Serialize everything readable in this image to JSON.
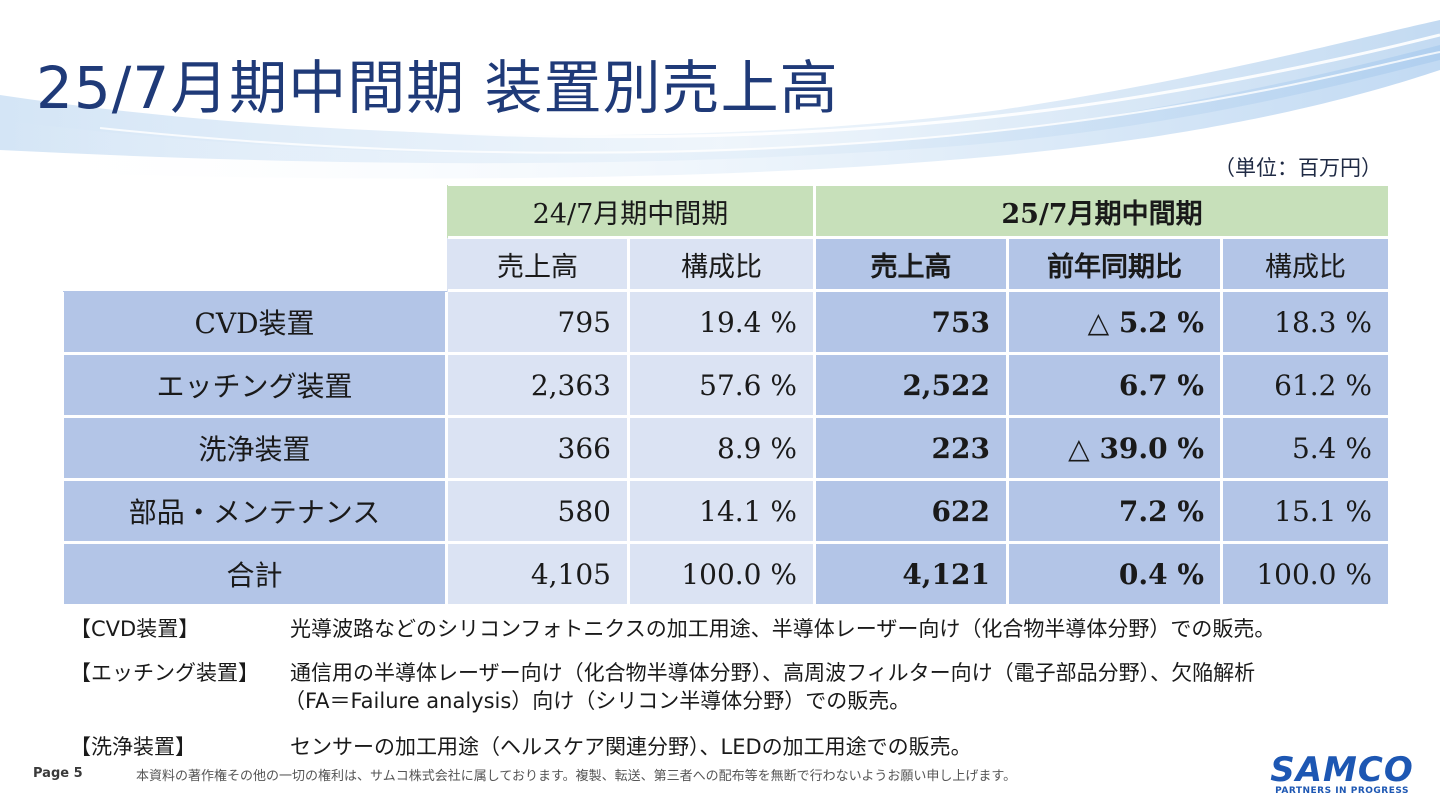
{
  "title": "25/7月期中間期 装置別売上高",
  "unit": "（単位：百万円）",
  "table": {
    "group_prev": "24/7月期中間期",
    "group_cur": "25/7月期中間期",
    "cols": [
      "売上高",
      "構成比",
      "売上高",
      "前年同期比",
      "構成比"
    ],
    "rows": [
      {
        "label": "CVD装置",
        "v1": "795",
        "v2": "19.4 %",
        "v3": "753",
        "v4": "△ 5.2 %",
        "v5": "18.3 %"
      },
      {
        "label": "エッチング装置",
        "v1": "2,363",
        "v2": "57.6 %",
        "v3": "2,522",
        "v4": "6.7 %",
        "v5": "61.2 %"
      },
      {
        "label": "洗浄装置",
        "v1": "366",
        "v2": "8.9 %",
        "v3": "223",
        "v4": "△ 39.0 %",
        "v5": "5.4 %"
      },
      {
        "label": "部品・メンテナンス",
        "v1": "580",
        "v2": "14.1 %",
        "v3": "622",
        "v4": "7.2 %",
        "v5": "15.1 %"
      }
    ],
    "total": {
      "label": "合計",
      "v1": "4,105",
      "v2": "100.0 %",
      "v3": "4,121",
      "v4": "0.4 %",
      "v5": "100.0 %"
    }
  },
  "notes": [
    {
      "label": "【CVD装置】",
      "text": "光導波路などのシリコンフォトニクスの加工用途、半導体レーザー向け（化合物半導体分野）での販売。"
    },
    {
      "label": "【エッチング装置】",
      "text": "通信用の半導体レーザー向け（化合物半導体分野）、高周波フィルター向け（電子部品分野）、欠陥解析",
      "text2": "（FA＝Failure analysis）向け（シリコン半導体分野）での販売。"
    },
    {
      "label": "【洗浄装置】",
      "text": "センサーの加工用途（ヘルスケア関連分野）、LEDの加工用途での販売。"
    }
  ],
  "footer": {
    "page": "Page 5",
    "copyright": "本資料の著作権その他の一切の権利は、サムコ株式会社に属しております。複製、転送、第三者への配布等を無断で行わないようお願い申し上げます。"
  },
  "logo": {
    "name": "SAMCO",
    "tagline": "PARTNERS IN PROGRESS"
  },
  "colors": {
    "title": "#1f3a78",
    "header_green": "#c7e0ba",
    "cell_light": "#dbe3f3",
    "cell_dark": "#b3c5e7",
    "logo_blue": "#1d57b3"
  }
}
